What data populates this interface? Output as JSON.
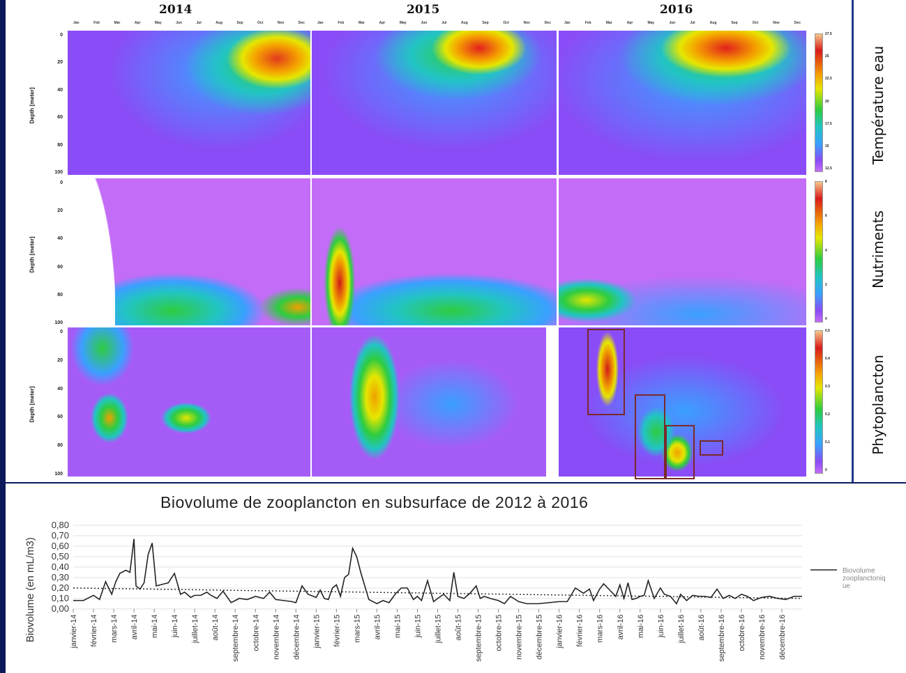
{
  "years": [
    "2014",
    "2015",
    "2016"
  ],
  "months": [
    "Jan",
    "Feb",
    "Mar",
    "Apr",
    "May",
    "Jun",
    "Jul",
    "Aug",
    "Sep",
    "Oct",
    "Nov",
    "Dec"
  ],
  "depth_axis": {
    "label": "Depth [meter]",
    "ticks": [
      "0",
      "20",
      "40",
      "60",
      "80",
      "100"
    ]
  },
  "row_titles": [
    "Température eau",
    "Nutriments",
    "Phytoplancton"
  ],
  "colorbars": [
    {
      "ticks": [
        "27.5",
        "25",
        "22.5",
        "20",
        "17.5",
        "15",
        "12.5"
      ]
    },
    {
      "ticks": [
        "8",
        "6",
        "4",
        "2",
        "0"
      ]
    },
    {
      "ticks": [
        "0.5",
        "0.4",
        "0.3",
        "0.2",
        "0.1",
        "0"
      ]
    }
  ],
  "colors": {
    "background": "#0c1a5c",
    "accent": "#1d3a8c",
    "line": "#222222"
  },
  "chart_data": [
    {
      "type": "heatmap",
      "title": "",
      "ylabel": "Depth [meter]",
      "years": [
        "2014",
        "2015",
        "2016"
      ],
      "row": "Température eau",
      "colorbar_range": [
        12.5,
        27.5
      ]
    },
    {
      "type": "heatmap",
      "title": "",
      "ylabel": "Depth [meter]",
      "years": [
        "2014",
        "2015",
        "2016"
      ],
      "row": "Nutriments",
      "colorbar_range": [
        0,
        8
      ]
    },
    {
      "type": "heatmap",
      "title": "",
      "ylabel": "Depth [meter]",
      "years": [
        "2014",
        "2015",
        "2016"
      ],
      "row": "Phytoplancton",
      "colorbar_range": [
        0,
        0.5
      ]
    },
    {
      "type": "line",
      "title": "Biovolume de zooplancton en subsurface de 2012 à 2016",
      "xlabel": "",
      "ylabel": "Biovolume (en mL/m3)",
      "ylim": [
        0,
        0.8
      ],
      "yticks": [
        "0,80",
        "0,70",
        "0,60",
        "0,50",
        "0,40",
        "0,30",
        "0,20",
        "0,10",
        "0,00"
      ],
      "categories": [
        "janvier-14",
        "février-14",
        "mars-14",
        "avril-14",
        "mai-14",
        "juin-14",
        "juillet-14",
        "août-14",
        "septembre-14",
        "octobre-14",
        "novembre-14",
        "décembre-14",
        "janvier-15",
        "février-15",
        "mars-15",
        "avril-15",
        "mai-15",
        "juin-15",
        "juillet-15",
        "août-15",
        "septembre-15",
        "octobre-15",
        "novembre-15",
        "décembre-15",
        "janvier-16",
        "février-16",
        "mars-16",
        "avril-16",
        "mai-16",
        "juin-16",
        "juillet-16",
        "août-16",
        "septembre-16",
        "octobre-16",
        "novembre-16",
        "décembre-16"
      ],
      "series": [
        {
          "name": "Biovolume zooplanctonique",
          "x": [
            0,
            0.5,
            1,
            1.3,
            1.6,
            1.9,
            2.1,
            2.3,
            2.6,
            2.8,
            3,
            3.1,
            3.3,
            3.5,
            3.7,
            3.9,
            4.1,
            4.3,
            4.5,
            4.7,
            5,
            5.3,
            5.5,
            5.8,
            6,
            6.3,
            6.6,
            6.8,
            7.1,
            7.4,
            7.8,
            8.2,
            8.6,
            9,
            9.4,
            9.7,
            10,
            10.4,
            10.8,
            11,
            11.3,
            11.6,
            12,
            12.2,
            12.4,
            12.6,
            12.8,
            13,
            13.2,
            13.4,
            13.6,
            13.8,
            14,
            14.2,
            14.4,
            14.6,
            15,
            15.3,
            15.6,
            15.9,
            16.2,
            16.5,
            16.8,
            17,
            17.2,
            17.5,
            17.8,
            18,
            18.3,
            18.6,
            18.8,
            19,
            19.3,
            19.6,
            19.9,
            20.1,
            20.3,
            20.6,
            21,
            21.3,
            21.6,
            22,
            22.4,
            22.7,
            23,
            23.5,
            24,
            24.4,
            24.8,
            25.2,
            25.5,
            25.7,
            26,
            26.2,
            26.5,
            26.8,
            27,
            27.2,
            27.4,
            27.6,
            27.8,
            28,
            28.2,
            28.4,
            28.7,
            29,
            29.2,
            29.5,
            29.8,
            30,
            30.3,
            30.6,
            30.9,
            31.2,
            31.5,
            31.8,
            32.1,
            32.4,
            32.7,
            33,
            33.3,
            33.6,
            34,
            34.4,
            34.8,
            35.2,
            35.6,
            36
          ],
          "values": [
            0.08,
            0.08,
            0.13,
            0.09,
            0.26,
            0.14,
            0.26,
            0.34,
            0.37,
            0.35,
            0.67,
            0.22,
            0.19,
            0.25,
            0.52,
            0.63,
            0.22,
            0.23,
            0.24,
            0.25,
            0.34,
            0.14,
            0.16,
            0.11,
            0.13,
            0.13,
            0.16,
            0.13,
            0.1,
            0.17,
            0.06,
            0.1,
            0.09,
            0.12,
            0.1,
            0.16,
            0.09,
            0.08,
            0.07,
            0.06,
            0.22,
            0.14,
            0.11,
            0.18,
            0.1,
            0.09,
            0.2,
            0.23,
            0.12,
            0.3,
            0.33,
            0.58,
            0.5,
            0.35,
            0.22,
            0.09,
            0.05,
            0.08,
            0.06,
            0.14,
            0.2,
            0.2,
            0.09,
            0.12,
            0.08,
            0.27,
            0.07,
            0.1,
            0.14,
            0.08,
            0.35,
            0.12,
            0.1,
            0.15,
            0.22,
            0.1,
            0.12,
            0.1,
            0.08,
            0.05,
            0.12,
            0.07,
            0.05,
            0.05,
            0.05,
            0.06,
            0.07,
            0.07,
            0.2,
            0.15,
            0.19,
            0.08,
            0.19,
            0.24,
            0.18,
            0.12,
            0.23,
            0.1,
            0.25,
            0.09,
            0.1,
            0.12,
            0.13,
            0.27,
            0.1,
            0.2,
            0.14,
            0.12,
            0.05,
            0.14,
            0.08,
            0.13,
            0.12,
            0.12,
            0.11,
            0.19,
            0.1,
            0.13,
            0.1,
            0.14,
            0.12,
            0.08,
            0.11,
            0.12,
            0.1,
            0.09,
            0.12,
            0.12
          ]
        },
        {
          "name": "",
          "style": "dotted trend",
          "x": [
            0,
            36
          ],
          "values": [
            0.2,
            0.1
          ]
        }
      ],
      "legend": "right"
    }
  ]
}
